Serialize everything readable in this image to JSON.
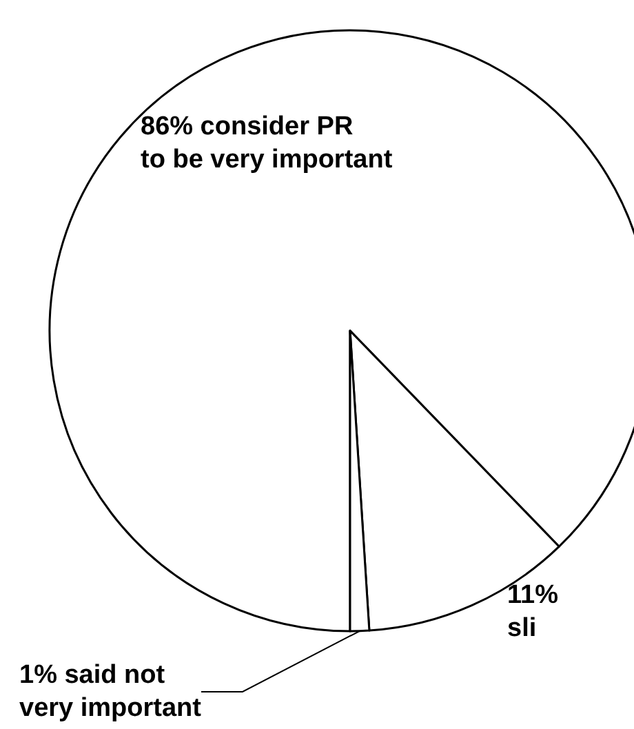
{
  "chart_data": {
    "type": "pie",
    "categories": [
      "86% consider PR\nto be very important",
      "11%\nsli",
      "1% said not\nvery important"
    ],
    "values": [
      86,
      11,
      1
    ],
    "colors": [
      "#ffffff",
      "#ffffff",
      "#ffffff"
    ],
    "legend": false
  }
}
